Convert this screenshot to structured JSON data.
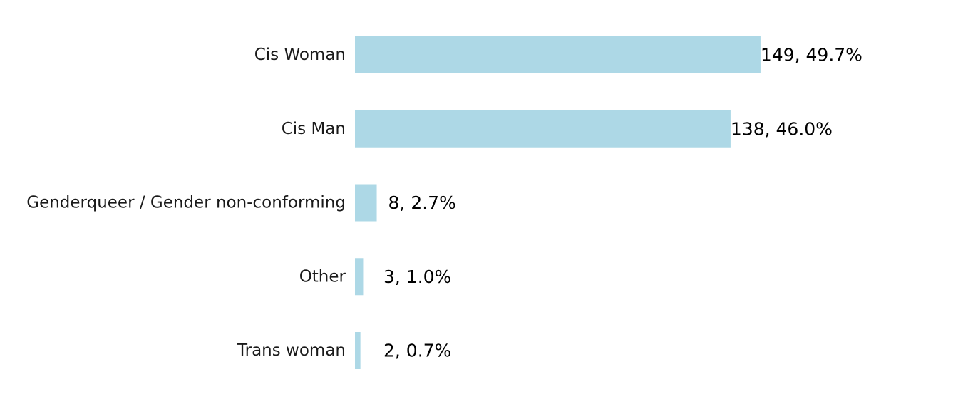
{
  "chart_data": {
    "type": "bar",
    "orientation": "horizontal",
    "categories": [
      "Cis Woman",
      "Cis Man",
      "Genderqueer / Gender non-conforming",
      "Other",
      "Trans woman"
    ],
    "values": [
      149,
      138,
      8,
      3,
      2
    ],
    "data_labels": [
      "149, 49.7%",
      "138, 46.0%",
      "8, 2.7%",
      "3, 1.0%",
      "2, 0.7%"
    ],
    "title": "",
    "xlabel": "",
    "ylabel": "",
    "xlim": [
      0,
      187
    ],
    "grid": false,
    "legend": "none",
    "bar_color": "#add8e6"
  }
}
